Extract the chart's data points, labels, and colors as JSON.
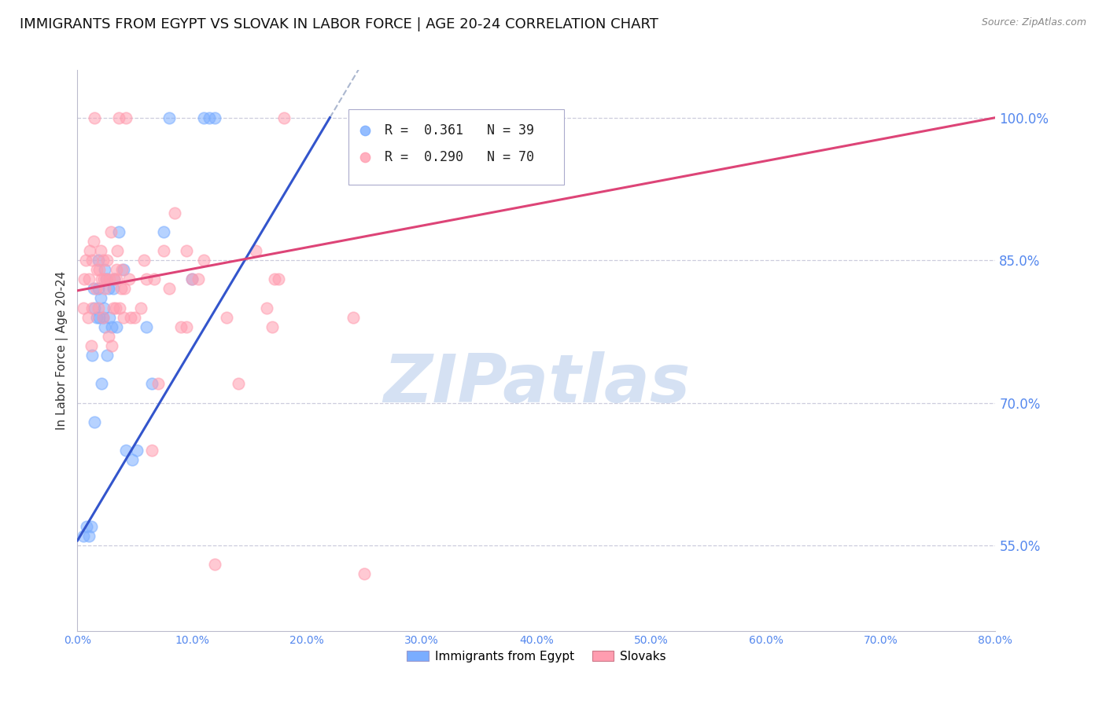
{
  "title": "IMMIGRANTS FROM EGYPT VS SLOVAK IN LABOR FORCE | AGE 20-24 CORRELATION CHART",
  "source": "Source: ZipAtlas.com",
  "ylabel": "In Labor Force | Age 20-24",
  "xlabel_ticks": [
    "0.0%",
    "10.0%",
    "20.0%",
    "30.0%",
    "40.0%",
    "50.0%",
    "60.0%",
    "70.0%",
    "80.0%"
  ],
  "xlabel_vals": [
    0.0,
    0.1,
    0.2,
    0.3,
    0.4,
    0.5,
    0.6,
    0.7,
    0.8
  ],
  "ylabel_ticks": [
    "55.0%",
    "70.0%",
    "85.0%",
    "100.0%"
  ],
  "ylabel_vals": [
    0.55,
    0.7,
    0.85,
    1.0
  ],
  "xmin": 0.0,
  "xmax": 0.8,
  "ymin": 0.46,
  "ymax": 1.05,
  "blue_R": "0.361",
  "blue_N": "39",
  "pink_R": "0.290",
  "pink_N": "70",
  "blue_label": "Immigrants from Egypt",
  "pink_label": "Slovaks",
  "blue_color": "#7AADFF",
  "pink_color": "#FF9DB0",
  "watermark": "ZIPatlas",
  "blue_trend_x0": 0.0,
  "blue_trend_y0": 0.555,
  "blue_trend_x1": 0.22,
  "blue_trend_y1": 1.0,
  "pink_trend_x0": 0.0,
  "pink_trend_y0": 0.818,
  "pink_trend_x1": 0.8,
  "pink_trend_y1": 1.0,
  "blue_scatter_x": [
    0.005,
    0.008,
    0.01,
    0.012,
    0.013,
    0.014,
    0.015,
    0.015,
    0.017,
    0.018,
    0.018,
    0.019,
    0.02,
    0.021,
    0.022,
    0.023,
    0.024,
    0.024,
    0.025,
    0.026,
    0.027,
    0.028,
    0.03,
    0.031,
    0.032,
    0.034,
    0.036,
    0.04,
    0.042,
    0.048,
    0.052,
    0.06,
    0.065,
    0.075,
    0.08,
    0.1,
    0.11,
    0.115,
    0.12
  ],
  "blue_scatter_y": [
    0.56,
    0.57,
    0.56,
    0.57,
    0.75,
    0.82,
    0.8,
    0.68,
    0.79,
    0.82,
    0.85,
    0.79,
    0.81,
    0.72,
    0.79,
    0.8,
    0.78,
    0.84,
    0.83,
    0.75,
    0.82,
    0.79,
    0.78,
    0.82,
    0.83,
    0.78,
    0.88,
    0.84,
    0.65,
    0.64,
    0.65,
    0.78,
    0.72,
    0.88,
    1.0,
    0.83,
    1.0,
    1.0,
    1.0
  ],
  "pink_scatter_x": [
    0.005,
    0.006,
    0.007,
    0.009,
    0.01,
    0.011,
    0.012,
    0.013,
    0.013,
    0.014,
    0.015,
    0.016,
    0.017,
    0.018,
    0.019,
    0.02,
    0.021,
    0.022,
    0.022,
    0.023,
    0.024,
    0.025,
    0.026,
    0.027,
    0.028,
    0.029,
    0.03,
    0.031,
    0.032,
    0.033,
    0.034,
    0.034,
    0.035,
    0.036,
    0.037,
    0.038,
    0.039,
    0.04,
    0.041,
    0.042,
    0.045,
    0.046,
    0.05,
    0.055,
    0.058,
    0.06,
    0.065,
    0.067,
    0.07,
    0.075,
    0.08,
    0.085,
    0.09,
    0.095,
    0.095,
    0.1,
    0.105,
    0.11,
    0.12,
    0.13,
    0.14,
    0.155,
    0.165,
    0.17,
    0.172,
    0.175,
    0.18,
    0.24,
    0.25,
    0.35
  ],
  "pink_scatter_y": [
    0.8,
    0.83,
    0.85,
    0.79,
    0.83,
    0.86,
    0.76,
    0.8,
    0.85,
    0.87,
    1.0,
    0.82,
    0.84,
    0.8,
    0.84,
    0.86,
    0.83,
    0.79,
    0.85,
    0.83,
    0.82,
    0.83,
    0.85,
    0.77,
    0.83,
    0.88,
    0.76,
    0.8,
    0.83,
    0.8,
    0.84,
    0.83,
    0.86,
    1.0,
    0.8,
    0.82,
    0.84,
    0.79,
    0.82,
    1.0,
    0.83,
    0.79,
    0.79,
    0.8,
    0.85,
    0.83,
    0.65,
    0.83,
    0.72,
    0.86,
    0.82,
    0.9,
    0.78,
    0.78,
    0.86,
    0.83,
    0.83,
    0.85,
    0.53,
    0.79,
    0.72,
    0.86,
    0.8,
    0.78,
    0.83,
    0.83,
    1.0,
    0.79,
    0.52,
    1.0
  ],
  "grid_color": "#CCCCDD",
  "title_fontsize": 13,
  "label_fontsize": 11,
  "tick_fontsize": 10,
  "axis_color": "#5588EE"
}
